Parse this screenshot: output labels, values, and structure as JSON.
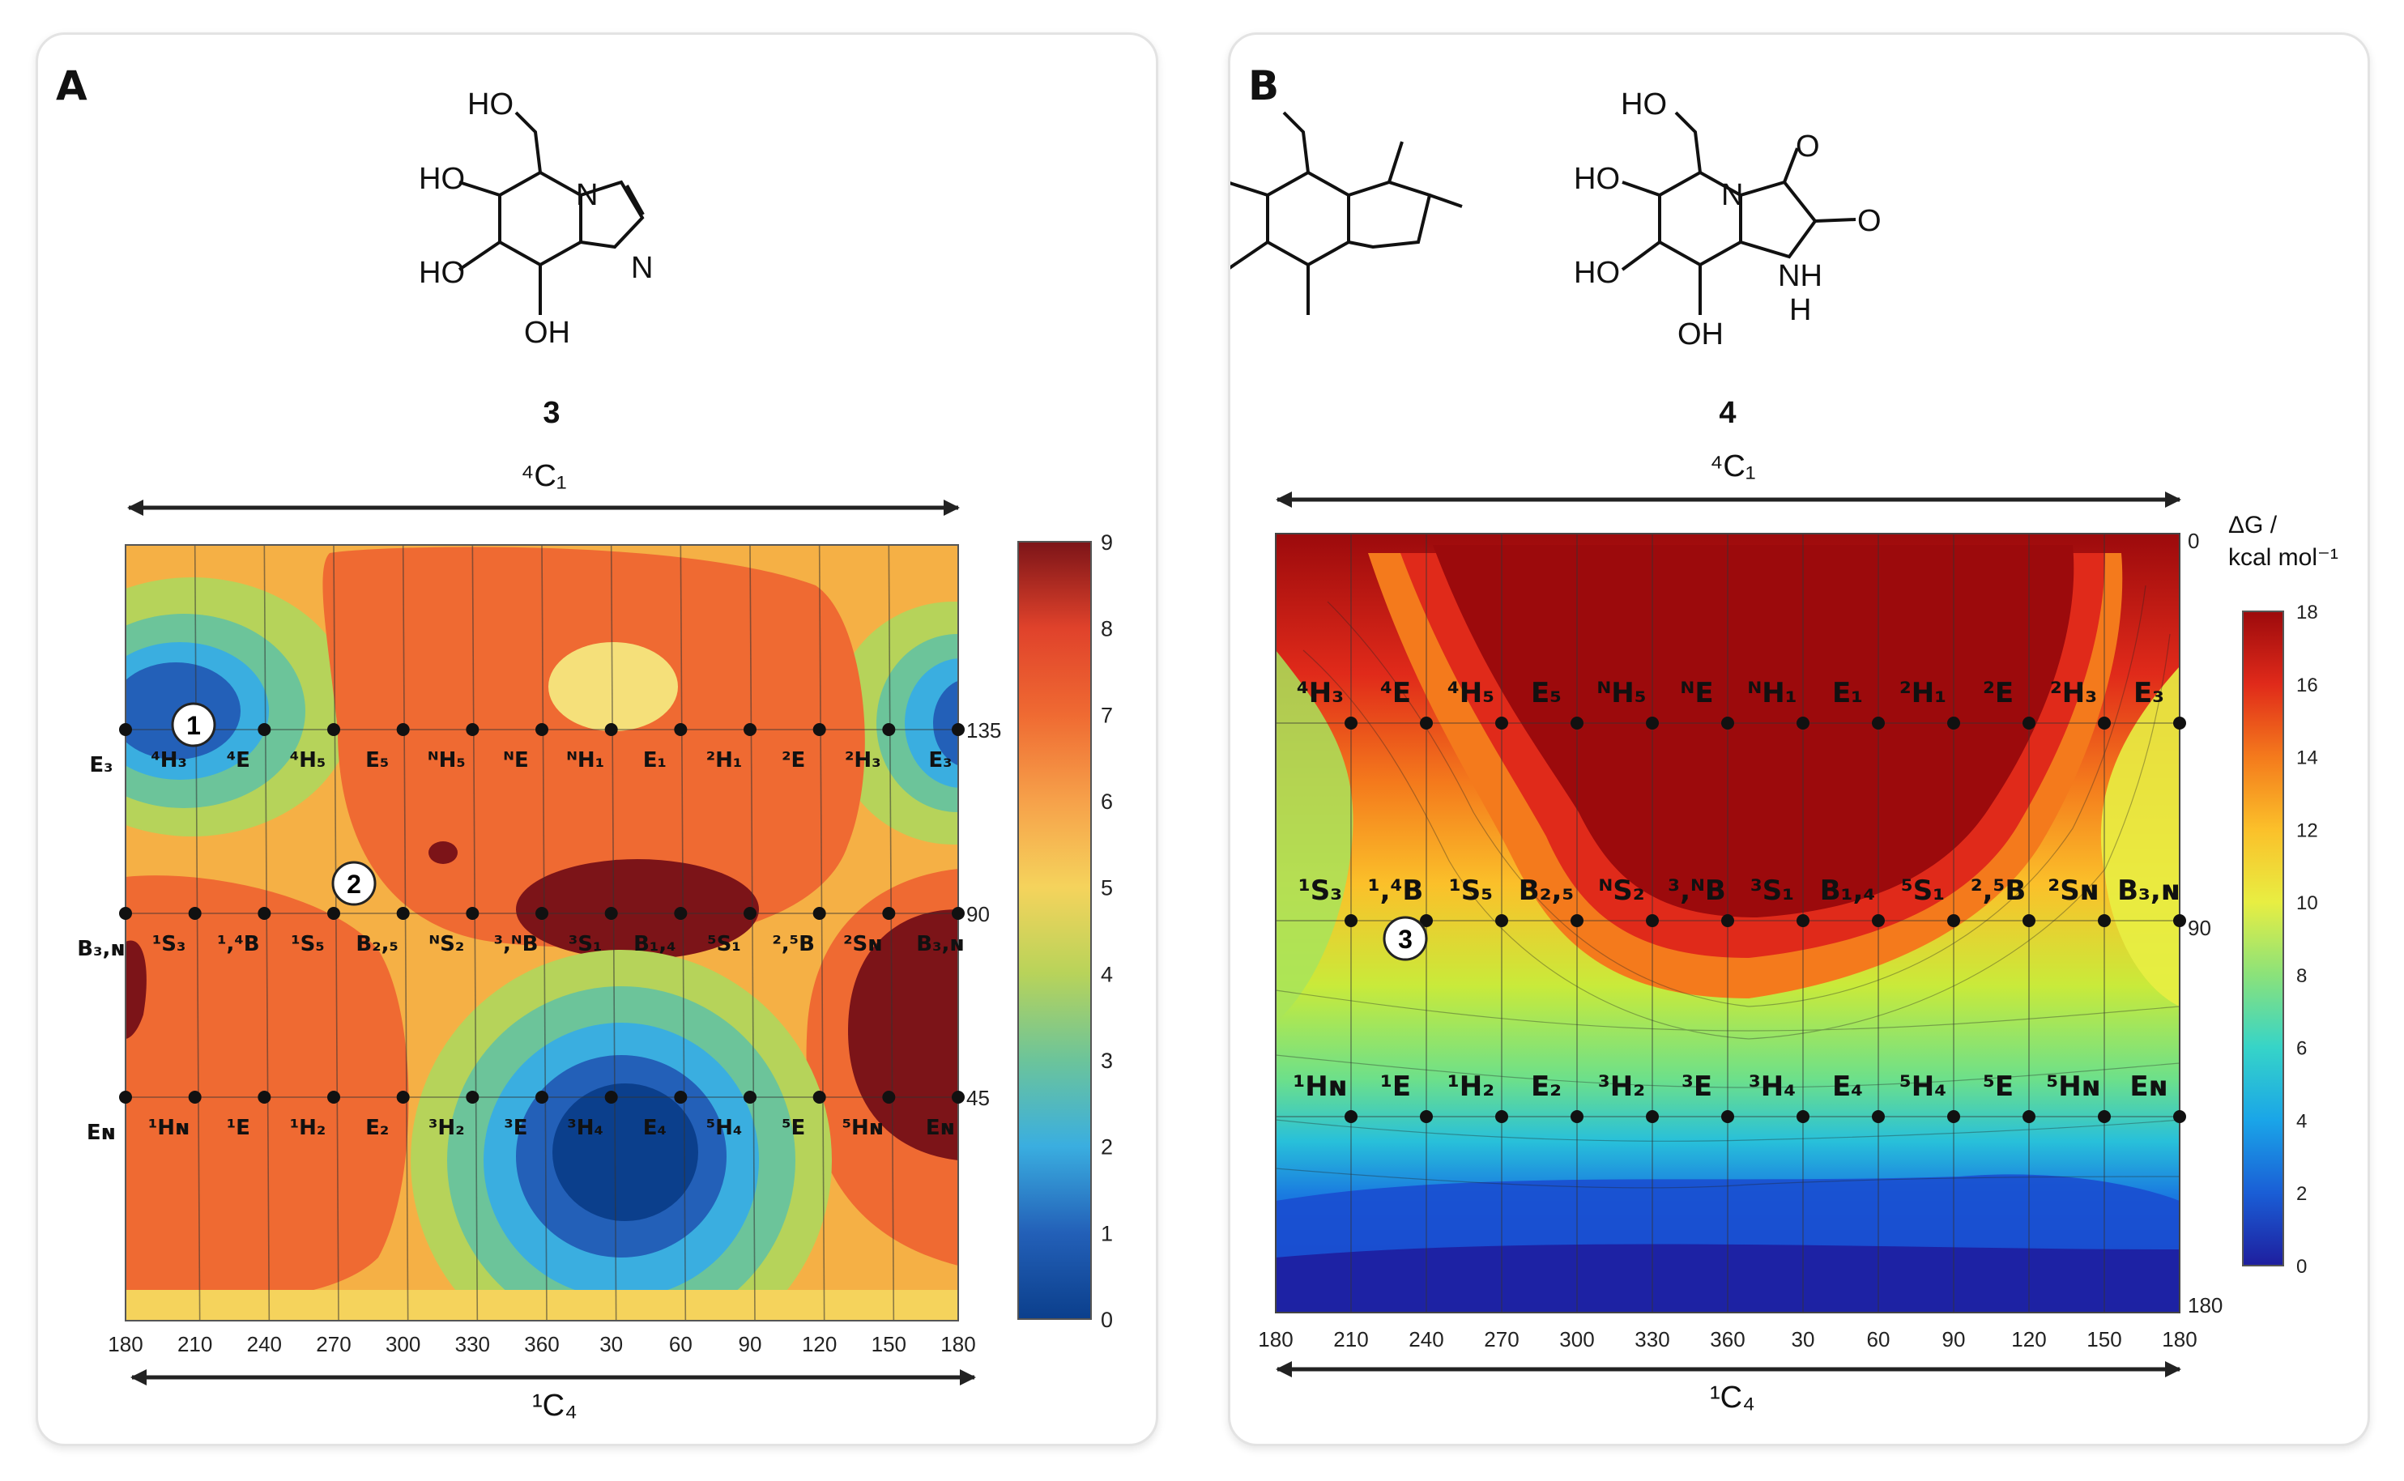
{
  "panels": [
    {
      "label": "A",
      "compound": "3",
      "structure_labels": [
        "HO",
        "HO",
        "HO",
        "OH",
        "N",
        "N"
      ],
      "top_axis_label": "⁴C₁",
      "bottom_axis_label": "¹C₄",
      "colorbar_ticks": [
        "9",
        "8",
        "7",
        "6",
        "5",
        "4",
        "3",
        "2",
        "1",
        "0"
      ],
      "colorbar_range": [
        0,
        9
      ],
      "minima_markers": [
        "1",
        "2"
      ]
    },
    {
      "label": "B",
      "compound": "4",
      "structure_labels": [
        "HO",
        "HO",
        "HO",
        "OH",
        "N",
        "NH",
        "H",
        "O",
        "O"
      ],
      "top_axis_label": "⁴C₁",
      "bottom_axis_label": "¹C₄",
      "colorbar_title_line1": "ΔG /",
      "colorbar_title_line2": "kcal mol⁻¹",
      "colorbar_ticks": [
        "18",
        "16",
        "14",
        "12",
        "10",
        "8",
        "6",
        "4",
        "2",
        "0"
      ],
      "colorbar_range": [
        0,
        18
      ],
      "minima_markers": [
        "3"
      ]
    }
  ],
  "chart_data": [
    {
      "type": "heatmap",
      "title": "",
      "x": {
        "ticks": [
          "180",
          "210",
          "240",
          "270",
          "300",
          "330",
          "360",
          "30",
          "60",
          "90",
          "120",
          "150",
          "180"
        ]
      },
      "y": {
        "ticks": [
          "135",
          "90",
          "45"
        ]
      },
      "colorscale": [
        "#0b3f8c",
        "#2360b8",
        "#3aaee0",
        "#6cc49a",
        "#b8d35a",
        "#f5d35c",
        "#f6a14a",
        "#ef6a32",
        "#e0422b",
        "#7c1418"
      ],
      "rows": [
        {
          "name": "row-135",
          "labels": [
            "E₃",
            "⁴H₃",
            "⁴E",
            "⁴H₅",
            "E₅",
            "ᴺH₅",
            "ᴺE",
            "ᴺH₁",
            "E₁",
            "²H₁",
            "²E",
            "²H₃",
            "E₃"
          ]
        },
        {
          "name": "row-90",
          "labels": [
            "B₃,ɴ",
            "¹S₃",
            "¹,⁴B",
            "¹S₅",
            "B₂,₅",
            "ᴺS₂",
            "³,ᴺB",
            "³S₁",
            "B₁,₄",
            "⁵S₁",
            "²,⁵B",
            "²Sɴ",
            "B₃,ɴ"
          ]
        },
        {
          "name": "row-45",
          "labels": [
            "Eɴ",
            "¹Hɴ",
            "¹E",
            "¹H₂",
            "E₂",
            "³H₂",
            "³E",
            "³H₄",
            "E₄",
            "⁵H₄",
            "⁵E",
            "⁵Hɴ",
            "Eɴ"
          ]
        }
      ]
    },
    {
      "type": "heatmap",
      "title": "",
      "x": {
        "ticks": [
          "180",
          "210",
          "240",
          "270",
          "300",
          "330",
          "360",
          "30",
          "60",
          "90",
          "120",
          "150",
          "180"
        ]
      },
      "y": {
        "ticks": [
          "0",
          "90",
          "180"
        ]
      },
      "colorscale": [
        "#1e1e9e",
        "#1a5ed6",
        "#1aa5e8",
        "#36d4c8",
        "#8be27a",
        "#e8ee42",
        "#fbc02a",
        "#f47a1c",
        "#e02a1a",
        "#9c0a0c"
      ],
      "rows": [
        {
          "name": "row-upper",
          "labels": [
            "⁴H₃",
            "⁴E",
            "⁴H₅",
            "E₅",
            "ᴺH₅",
            "ᴺE",
            "ᴺH₁",
            "E₁",
            "²H₁",
            "²E",
            "²H₃",
            "E₃"
          ]
        },
        {
          "name": "row-90",
          "labels": [
            "¹S₃",
            "¹,⁴B",
            "¹S₅",
            "B₂,₅",
            "ᴺS₂",
            "³,ᴺB",
            "³S₁",
            "B₁,₄",
            "⁵S₁",
            "²,⁵B",
            "²Sɴ",
            "B₃,ɴ"
          ]
        },
        {
          "name": "row-lower",
          "labels": [
            "¹Hɴ",
            "¹E",
            "¹H₂",
            "E₂",
            "³H₂",
            "³E",
            "³H₄",
            "E₄",
            "⁵H₄",
            "⁵E",
            "⁵Hɴ",
            "Eɴ"
          ]
        }
      ]
    }
  ]
}
